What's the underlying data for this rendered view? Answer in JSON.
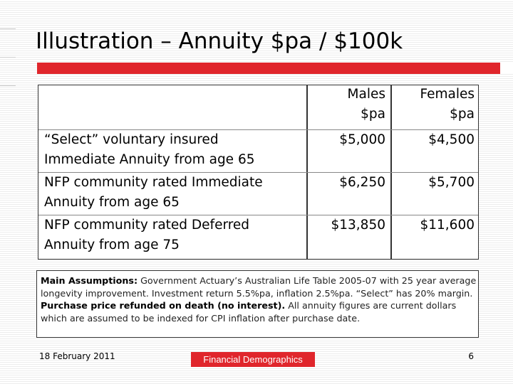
{
  "slide": {
    "title": "Illustration – Annuity $pa / $100k",
    "accent_color": "#e0262c"
  },
  "table": {
    "columns": [
      {
        "line1": "Males",
        "line2": "$pa"
      },
      {
        "line1": "Females",
        "line2": "$pa"
      }
    ],
    "rows": [
      {
        "label_line1": "“Select” voluntary insured",
        "label_line2": "Immediate Annuity from age 65",
        "males": "$5,000",
        "females": "$4,500"
      },
      {
        "label_line1": "NFP community rated Immediate",
        "label_line2": "Annuity from age 65",
        "males": "$6,250",
        "females": "$5,700"
      },
      {
        "label_line1": "NFP community rated Deferred",
        "label_line2": "Annuity from age 75",
        "males": "$13,850",
        "females": "$11,600"
      }
    ]
  },
  "assumptions": {
    "heading": "Main Assumptions:",
    "text1": " Government Actuary’s Australian Life Table 2005-07 with 25 year average longevity improvement. Investment return 5.5%pa, inflation 2.5%pa. “Select” has 20% margin. ",
    "bold2": "Purchase price refunded on death (no interest).",
    "text2": " All annuity figures are current dollars which are assumed to be indexed for CPI inflation after purchase date."
  },
  "footer": {
    "date": "18 February 2011",
    "logo_text": "Financial Demographics",
    "page_number": "6"
  }
}
